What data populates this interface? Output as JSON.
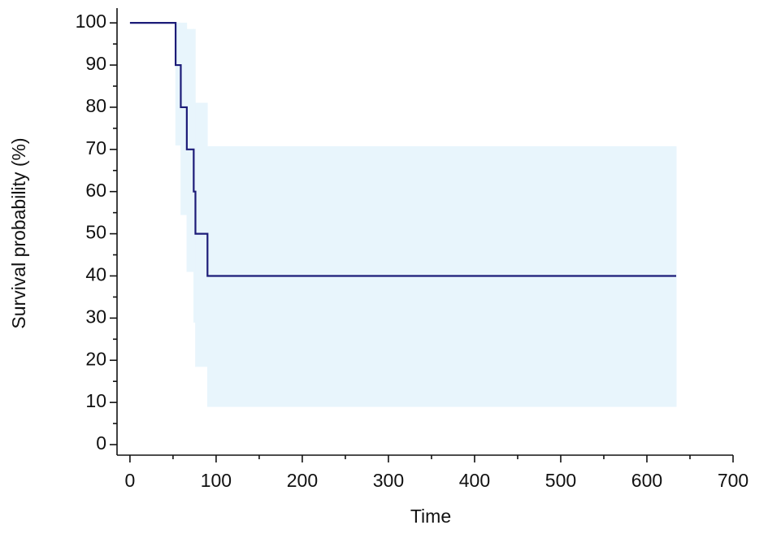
{
  "chart_data": {
    "type": "step",
    "x_label": "Time",
    "y_label": "Survival probability (%)",
    "x": [
      0,
      53,
      59,
      66,
      74,
      76,
      90,
      634
    ],
    "values": [
      100,
      90,
      80,
      70,
      60,
      50,
      40,
      40
    ],
    "upper": [
      100,
      100,
      100,
      98.5,
      98.5,
      81,
      70.7,
      70.7
    ],
    "lower": [
      100,
      71,
      54.5,
      41,
      29,
      18.5,
      9,
      9
    ],
    "color": "#1c1c78",
    "band_color": "#e8f5fc",
    "xlim": [
      -15,
      700
    ],
    "ylim": [
      -2.5,
      103.5
    ],
    "xticks": [
      0,
      100,
      200,
      300,
      400,
      500,
      600,
      700
    ],
    "yticks": [
      0,
      10,
      20,
      30,
      40,
      50,
      60,
      70,
      80,
      90,
      100
    ],
    "xminor": [
      50,
      150,
      250,
      350,
      450,
      550,
      650
    ],
    "yminor": [
      5,
      15,
      25,
      35,
      45,
      55,
      65,
      75,
      85,
      95
    ]
  }
}
